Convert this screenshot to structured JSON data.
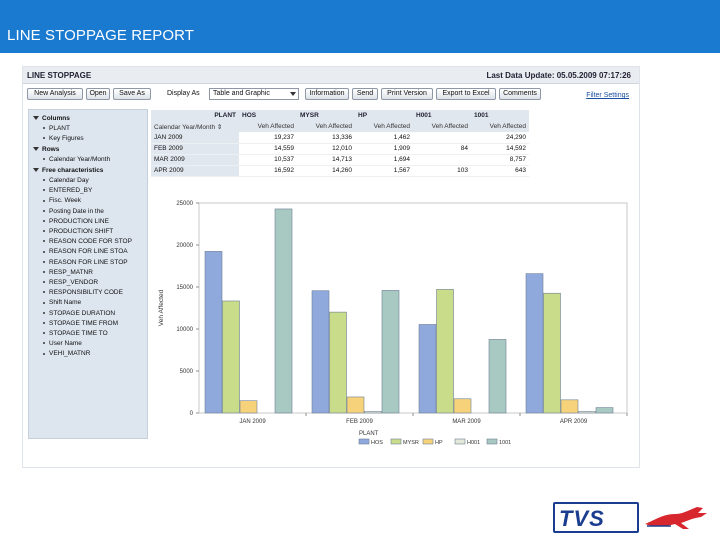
{
  "slide": {
    "title": "LINE STOPPAGE REPORT"
  },
  "report": {
    "name": "LINE STOPPAGE",
    "last_update": "Last Data Update: 05.05.2009 07:17:26"
  },
  "toolbar": {
    "new_analysis": "New Analysis",
    "open": "Open",
    "save_as": "Save As",
    "display_as_label": "Display As",
    "display_as_value": "Table and Graphic",
    "information": "Information",
    "send": "Send",
    "print_version": "Print Version",
    "export_excel": "Export to Excel",
    "comments": "Comments",
    "filter_settings": "Filter Settings"
  },
  "nav": {
    "columns": {
      "label": "Columns",
      "items": [
        "PLANT",
        "Key Figures"
      ]
    },
    "rows": {
      "label": "Rows",
      "items": [
        "Calendar Year/Month"
      ]
    },
    "free": {
      "label": "Free characteristics",
      "items": [
        "Calendar Day",
        "ENTERED_BY",
        "Fisc. Week",
        "Posting Date in the",
        "PRODUCTION LINE",
        "PRODUCTION SHIFT",
        "REASON CODE FOR STOP",
        "REASON FOR LINE STOA",
        "REASON FOR LINE STOP",
        "RESP_MATNR",
        "RESP_VENDOR",
        "RESPONSIBILITY CODE",
        "Shift Name",
        "STOPAGE DURATION",
        "STOPAGE TIME FROM",
        "STOPAGE TIME TO",
        "User Name",
        "VEHI_MATNR"
      ]
    }
  },
  "table": {
    "plant_label": "PLANT",
    "row_header": "Calendar Year/Month",
    "plants": [
      "HOS",
      "MYSR",
      "HP",
      "H001",
      "1001"
    ],
    "metric": "Veh Affected",
    "rows": [
      {
        "month": "JAN 2009",
        "values": [
          "19,237",
          "13,336",
          "1,462",
          "",
          "24,290"
        ]
      },
      {
        "month": "FEB 2009",
        "values": [
          "14,559",
          "12,010",
          "1,909",
          "84",
          "14,592"
        ]
      },
      {
        "month": "MAR 2009",
        "values": [
          "10,537",
          "14,713",
          "1,694",
          "",
          "8,757"
        ]
      },
      {
        "month": "APR 2009",
        "values": [
          "16,592",
          "14,260",
          "1,567",
          "103",
          "643"
        ]
      }
    ]
  },
  "chart_data": {
    "type": "bar",
    "title": "",
    "xlabel": "",
    "ylabel": "Veh Affected",
    "ylim": [
      0,
      25000
    ],
    "yticks": [
      "0",
      "5000",
      "10000",
      "15000",
      "20000",
      "25000"
    ],
    "categories": [
      "JAN 2009",
      "FEB 2009",
      "MAR 2009",
      "APR 2009"
    ],
    "series": [
      {
        "name": "HOS",
        "color": "#8fa9dc",
        "values": [
          19237,
          14559,
          10537,
          16592
        ]
      },
      {
        "name": "MYSR",
        "color": "#c9dc8a",
        "values": [
          13336,
          12010,
          14713,
          14260
        ]
      },
      {
        "name": "HP",
        "color": "#f6d37a",
        "values": [
          1462,
          1909,
          1694,
          1567
        ]
      },
      {
        "name": "H001",
        "color": "#e4e8d8",
        "values": [
          0,
          84,
          0,
          103
        ]
      },
      {
        "name": "1001",
        "color": "#a7c9c1",
        "values": [
          24290,
          14592,
          8757,
          643
        ]
      }
    ],
    "legend_title": "PLANT",
    "legend_position": "bottom"
  },
  "logo": {
    "text": "TVS"
  }
}
